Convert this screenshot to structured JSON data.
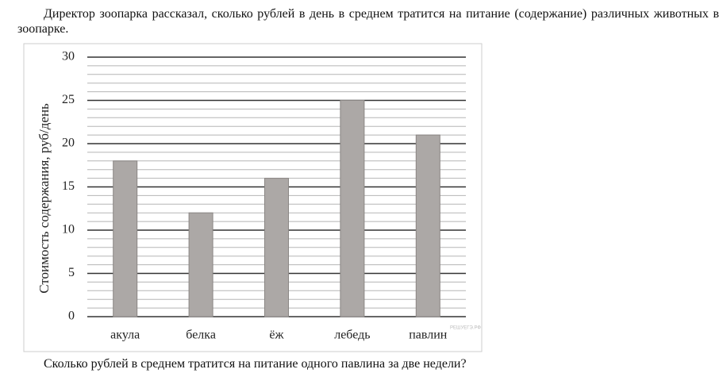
{
  "intro": "Директор зоопарка рассказал, сколько рублей в день в среднем тратится на питание (содержание) различных животных в зоопарке.",
  "chart_data": {
    "type": "bar",
    "ylabel": "Стоимость содержания, руб/день",
    "categories": [
      "акула",
      "белка",
      "ёж",
      "лебедь",
      "павлин"
    ],
    "values": [
      18,
      12,
      16,
      25,
      21
    ],
    "color": "#aca8a6",
    "ylim": [
      0,
      30
    ],
    "yticks": [
      0,
      5,
      10,
      15,
      20,
      25,
      30
    ],
    "minor_yticks": [
      1,
      2,
      3,
      4,
      6,
      7,
      8,
      9,
      11,
      12,
      13,
      14,
      16,
      17,
      18,
      19,
      21,
      22,
      23,
      24,
      26,
      27,
      28,
      29
    ],
    "grid": true,
    "watermark": "РЕШУЕГЭ.РФ"
  },
  "question": "Сколько рублей в среднем тратится на питание одного павлина за две недели?"
}
